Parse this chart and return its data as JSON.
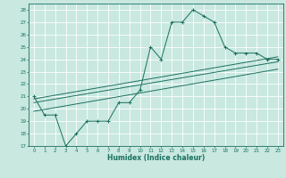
{
  "title": "",
  "xlabel": "Humidex (Indice chaleur)",
  "ylabel": "",
  "xlim": [
    -0.5,
    23.5
  ],
  "ylim": [
    17,
    28.5
  ],
  "yticks": [
    17,
    18,
    19,
    20,
    21,
    22,
    23,
    24,
    25,
    26,
    27,
    28
  ],
  "xticks": [
    0,
    1,
    2,
    3,
    4,
    5,
    6,
    7,
    8,
    9,
    10,
    11,
    12,
    13,
    14,
    15,
    16,
    17,
    18,
    19,
    20,
    21,
    22,
    23
  ],
  "bg_color": "#c8e8e0",
  "line_color": "#1a7060",
  "grid_color": "#ffffff",
  "main_line_x": [
    0,
    1,
    2,
    3,
    4,
    5,
    6,
    7,
    8,
    9,
    10,
    11,
    12,
    13,
    14,
    15,
    16,
    17,
    18,
    19,
    20,
    21,
    22,
    23
  ],
  "main_line_y": [
    21.0,
    19.5,
    19.5,
    17.0,
    18.0,
    19.0,
    19.0,
    19.0,
    20.5,
    20.5,
    21.5,
    25.0,
    24.0,
    27.0,
    27.0,
    28.0,
    27.5,
    27.0,
    25.0,
    24.5,
    24.5,
    24.5,
    24.0,
    24.0
  ],
  "reg_line1_x": [
    0,
    23
  ],
  "reg_line1_y": [
    20.8,
    24.2
  ],
  "reg_line2_x": [
    0,
    23
  ],
  "reg_line2_y": [
    20.5,
    23.8
  ],
  "reg_line3_x": [
    0,
    23
  ],
  "reg_line3_y": [
    19.8,
    23.2
  ]
}
